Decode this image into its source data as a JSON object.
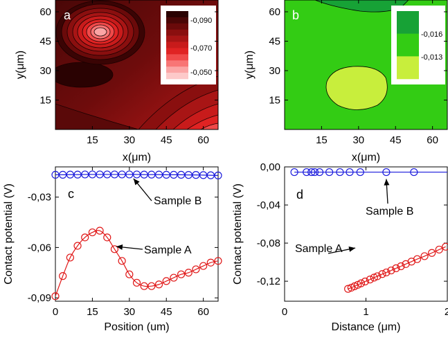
{
  "chart_data": [
    {
      "panel": "a",
      "type": "heatmap",
      "xlabel": "x(μm)",
      "ylabel": "y(μm)",
      "xlim": [
        0,
        66
      ],
      "ylim": [
        0,
        66
      ],
      "xticks": [
        15,
        30,
        45,
        60
      ],
      "xtick_labels": [
        "15",
        "30",
        "45",
        "60"
      ],
      "yticks": [
        15,
        30,
        45,
        60
      ],
      "ytick_labels": [
        "15",
        "30",
        "45",
        "60"
      ],
      "colorbar": {
        "labels": [
          "-0,090",
          "-0,070",
          "-0,050"
        ],
        "colors": [
          "#2a0202",
          "#4a0606",
          "#6a0a0a",
          "#8a0f0f",
          "#a81515",
          "#c81b1b",
          "#e02323",
          "#f04a4a",
          "#f87575",
          "#fba5a5",
          "#fdc9c9"
        ],
        "placement": "top-right"
      }
    },
    {
      "panel": "b",
      "type": "heatmap",
      "xlabel": "x(μm)",
      "ylabel": "y(μm)",
      "xlim": [
        0,
        66
      ],
      "ylim": [
        0,
        66
      ],
      "xticks": [
        15,
        30,
        45,
        60
      ],
      "xtick_labels": [
        "15",
        "30",
        "45",
        "60"
      ],
      "yticks": [
        15,
        30,
        45,
        60
      ],
      "ytick_labels": [
        "15",
        "30",
        "45",
        "60"
      ],
      "colorbar": {
        "labels": [
          "-0,016",
          "-0,013"
        ],
        "colors": [
          "#17a236",
          "#33cc14",
          "#c8ee3c"
        ],
        "placement": "top-right"
      }
    },
    {
      "panel": "c",
      "type": "line",
      "xlabel": "Position (um)",
      "ylabel": "Contact potential (V)",
      "xlim": [
        0,
        66
      ],
      "ylim": [
        -0.092,
        -0.012
      ],
      "xticks": [
        0,
        15,
        30,
        45,
        60
      ],
      "xtick_labels": [
        "0",
        "15",
        "30",
        "45",
        "60"
      ],
      "yticks": [
        -0.03,
        -0.06,
        -0.09
      ],
      "ytick_labels": [
        "-0,03",
        "-0,06",
        "-0,09"
      ],
      "series": [
        {
          "name": "Sample B",
          "color": "#1a1adc",
          "x": [
            0,
            3,
            6,
            9,
            12,
            15,
            18,
            21,
            24,
            27,
            30,
            33,
            36,
            39,
            42,
            45,
            48,
            51,
            54,
            57,
            60,
            63,
            66
          ],
          "y": [
            -0.0167,
            -0.0167,
            -0.0166,
            -0.0166,
            -0.0165,
            -0.0165,
            -0.0165,
            -0.0165,
            -0.0165,
            -0.0165,
            -0.0165,
            -0.0165,
            -0.0166,
            -0.0166,
            -0.0166,
            -0.0167,
            -0.0167,
            -0.0167,
            -0.0168,
            -0.0168,
            -0.0169,
            -0.017,
            -0.0171
          ]
        },
        {
          "name": "Sample A",
          "color": "#e01818",
          "x": [
            0,
            3,
            6,
            9,
            12,
            15,
            18,
            21,
            24,
            27,
            30,
            33,
            36,
            39,
            42,
            45,
            48,
            51,
            54,
            57,
            60,
            63,
            66
          ],
          "y": [
            -0.089,
            -0.077,
            -0.066,
            -0.059,
            -0.054,
            -0.051,
            -0.05,
            -0.054,
            -0.061,
            -0.068,
            -0.076,
            -0.081,
            -0.083,
            -0.083,
            -0.082,
            -0.08,
            -0.078,
            -0.076,
            -0.075,
            -0.073,
            -0.071,
            -0.069,
            -0.068
          ]
        }
      ],
      "annotations": [
        {
          "text": "Sample B",
          "target": [
            30,
            -0.0165
          ]
        },
        {
          "text": "Sample A",
          "target": [
            23,
            -0.059
          ]
        }
      ]
    },
    {
      "panel": "d",
      "type": "line",
      "xlabel": "Distance (μm)",
      "ylabel": "Contact potential (V)",
      "xlim": [
        0,
        2
      ],
      "ylim": [
        -0.141,
        0.0
      ],
      "xticks": [
        0,
        1,
        2
      ],
      "xtick_labels": [
        "0",
        "1",
        "2"
      ],
      "yticks": [
        0.0,
        -0.04,
        -0.08,
        -0.12
      ],
      "ytick_labels": [
        "0,00",
        "-0,04",
        "-0,08",
        "-0,12"
      ],
      "series": [
        {
          "name": "Sample B",
          "color": "#1a1adc",
          "x": [
            0.12,
            0.27,
            0.33,
            0.37,
            0.43,
            0.55,
            0.68,
            0.8,
            0.93,
            1.25,
            1.59
          ],
          "y": [
            -0.0055,
            -0.0055,
            -0.0055,
            -0.0055,
            -0.0055,
            -0.0055,
            -0.0055,
            -0.0055,
            -0.0055,
            -0.0055,
            -0.0055
          ],
          "line_x_end": 2.0
        },
        {
          "name": "Sample A",
          "color": "#e01818",
          "x": [
            0.78,
            0.82,
            0.86,
            0.9,
            0.94,
            0.99,
            1.05,
            1.1,
            1.14,
            1.2,
            1.25,
            1.31,
            1.37,
            1.43,
            1.49,
            1.56,
            1.63,
            1.72,
            1.81,
            1.9,
            1.98
          ],
          "y": [
            -0.128,
            -0.1268,
            -0.1253,
            -0.1238,
            -0.1222,
            -0.1203,
            -0.1182,
            -0.1162,
            -0.1148,
            -0.1125,
            -0.1108,
            -0.1087,
            -0.1064,
            -0.1043,
            -0.102,
            -0.0994,
            -0.0968,
            -0.0937,
            -0.0903,
            -0.0868,
            -0.0838
          ]
        }
      ],
      "annotations": [
        {
          "text": "Sample B",
          "target": [
            1.25,
            -0.0055
          ]
        },
        {
          "text": "Sample A",
          "target": [
            0.92,
            -0.088
          ]
        }
      ]
    }
  ]
}
